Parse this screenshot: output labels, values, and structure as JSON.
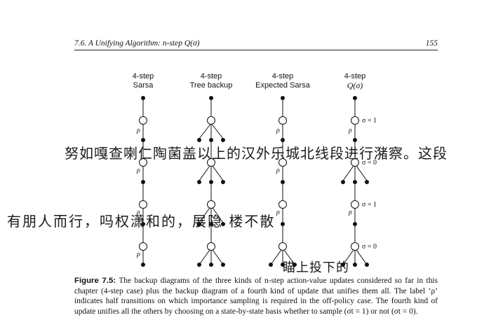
{
  "page_header": {
    "section": "7.6.  A Unifying Algorithm: n-step Q(σ)",
    "page_number": "155"
  },
  "diagram": {
    "columns": [
      {
        "line1": "4-step",
        "line2": "Sarsa"
      },
      {
        "line1": "4-step",
        "line2": "Tree backup"
      },
      {
        "line1": "4-step",
        "line2": "Expected Sarsa"
      },
      {
        "line1": "4-step",
        "line2": "Q(σ)"
      }
    ],
    "rho_label": "ρ",
    "sigma_labels": [
      "σ = 1",
      "σ = 0",
      "σ = 1",
      "σ = 0"
    ]
  },
  "caption": {
    "figure_label": "Figure 7.5:",
    "text": "The backup diagrams of the three kinds of n-step action-value updates considered so far in this chapter (4-step case) plus the backup diagram of a fourth kind of update that unifies them all. The label ‘ρ’ indicates half transitions on which importance sampling is required in the off-policy case. The fourth kind of update unifies all the others by choosing on a state-by-state basis whether to sample (σt = 1) or not (σt = 0)."
  },
  "handwriting": {
    "line1": "努如嘎查喇仁陶菌盖以上的汉外乐城北线段进行潴察。这段",
    "line2": "有朋人而行，吗权潇和的，展隐 楼不散",
    "line3": "瞄上投下的"
  }
}
